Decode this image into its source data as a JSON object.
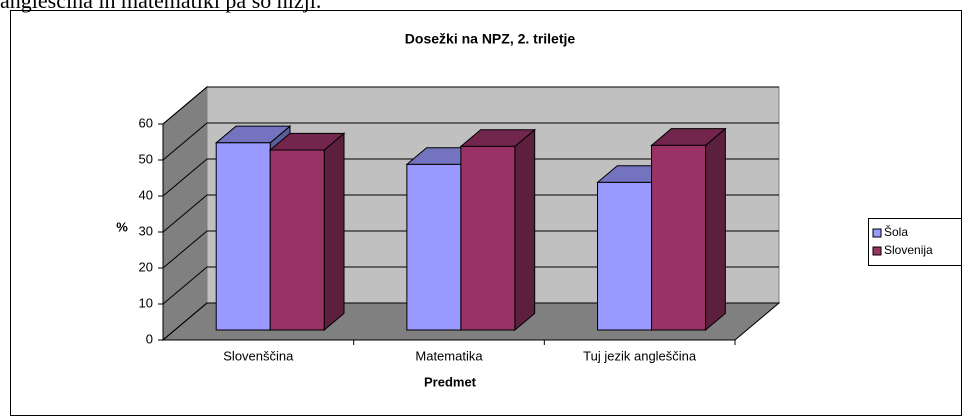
{
  "text_above": "angleščina in matematiki pa so nižji.",
  "chart_data": {
    "type": "bar3d",
    "title": "Dosežki na NPZ, 2. triletje",
    "categories": [
      "Slovenščina",
      "Matematika",
      "Tuj jezik angleščina"
    ],
    "series": [
      {
        "name": "Šola",
        "color": "#9999ff",
        "values": [
          52,
          46,
          41
        ]
      },
      {
        "name": "Slovenija",
        "color": "#993366",
        "values": [
          50,
          51,
          51.3
        ]
      }
    ],
    "xlabel": "Predmet",
    "ylabel": "%",
    "ylim": [
      0,
      60
    ],
    "yticks": [
      0,
      10,
      20,
      30,
      40,
      50,
      60
    ],
    "grid": true,
    "legend": "right"
  }
}
